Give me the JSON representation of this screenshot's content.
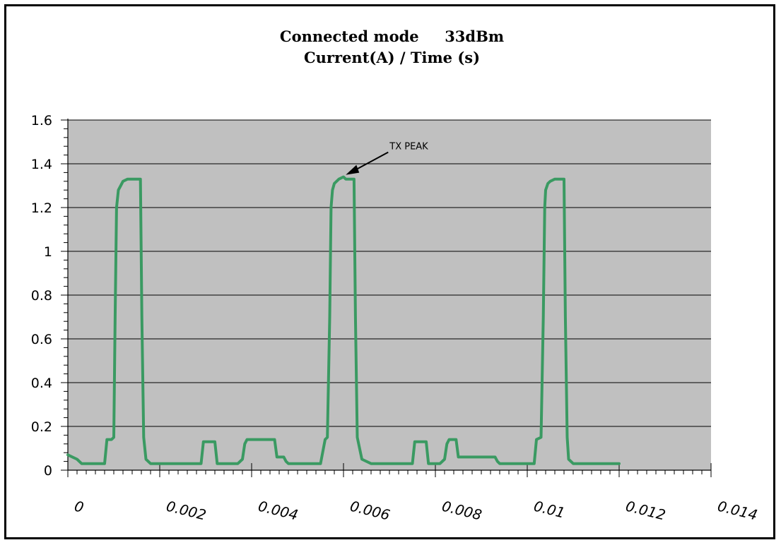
{
  "chart_data": {
    "type": "line",
    "title": "Connected mode     33dBm",
    "subtitle": "Current(A) / Time (s)",
    "xlabel": "",
    "ylabel": "",
    "xlim": [
      0,
      0.014
    ],
    "ylim": [
      0,
      1.6
    ],
    "x_ticks": [
      0,
      0.002,
      0.004,
      0.006,
      0.008,
      0.01,
      0.012,
      0.014
    ],
    "x_tick_labels": [
      "0",
      "0.002",
      "0.004",
      "0.006",
      "0.008",
      "0.01",
      "0.012",
      "0.014"
    ],
    "y_ticks": [
      0,
      0.2,
      0.4,
      0.6,
      0.8,
      1,
      1.2,
      1.4,
      1.6
    ],
    "y_tick_labels": [
      "0",
      "0.2",
      "0.4",
      "0.6",
      "0.8",
      "1",
      "1.2",
      "1.4",
      "1.6"
    ],
    "grid": "horizontal",
    "plot_background": "#c0c0c0",
    "series": [
      {
        "color": "#3a9a62",
        "x": [
          0,
          0.0001,
          0.0002,
          0.0003,
          0.00055,
          0.0008,
          0.00085,
          0.00095,
          0.001,
          0.00103,
          0.00106,
          0.0011,
          0.00115,
          0.0012,
          0.0013,
          0.00145,
          0.00158,
          0.00161,
          0.00165,
          0.0017,
          0.0018,
          0.002,
          0.0029,
          0.00295,
          0.003,
          0.0032,
          0.00325,
          0.0033,
          0.0037,
          0.0038,
          0.00385,
          0.0039,
          0.0045,
          0.00455,
          0.0046,
          0.0047,
          0.00475,
          0.0048,
          0.0049,
          0.0055,
          0.0056,
          0.00565,
          0.0057,
          0.00573,
          0.00576,
          0.0058,
          0.0059,
          0.006,
          0.00605,
          0.0061,
          0.00623,
          0.00626,
          0.0063,
          0.0064,
          0.0066,
          0.0075,
          0.00755,
          0.0076,
          0.0078,
          0.00785,
          0.0079,
          0.0081,
          0.0082,
          0.00825,
          0.0083,
          0.0084,
          0.00845,
          0.0085,
          0.0093,
          0.00935,
          0.0094,
          0.0096,
          0.0097,
          0.01015,
          0.0102,
          0.0103,
          0.01035,
          0.01038,
          0.0104,
          0.01045,
          0.0105,
          0.0106,
          0.0108,
          0.01083,
          0.01087,
          0.0109,
          0.011,
          0.0112,
          0.012
        ],
        "y": [
          0.07,
          0.06,
          0.05,
          0.03,
          0.03,
          0.03,
          0.14,
          0.14,
          0.15,
          0.7,
          1.2,
          1.28,
          1.3,
          1.32,
          1.33,
          1.33,
          1.33,
          0.7,
          0.15,
          0.05,
          0.03,
          0.03,
          0.03,
          0.13,
          0.13,
          0.13,
          0.03,
          0.03,
          0.03,
          0.05,
          0.12,
          0.14,
          0.14,
          0.06,
          0.06,
          0.06,
          0.04,
          0.03,
          0.03,
          0.03,
          0.14,
          0.15,
          0.7,
          1.2,
          1.28,
          1.31,
          1.33,
          1.34,
          1.33,
          1.33,
          1.33,
          0.7,
          0.15,
          0.05,
          0.03,
          0.03,
          0.13,
          0.13,
          0.13,
          0.03,
          0.03,
          0.03,
          0.05,
          0.12,
          0.14,
          0.14,
          0.14,
          0.06,
          0.06,
          0.04,
          0.03,
          0.03,
          0.03,
          0.03,
          0.14,
          0.15,
          0.7,
          1.2,
          1.28,
          1.31,
          1.32,
          1.33,
          1.33,
          0.7,
          0.15,
          0.05,
          0.03,
          0.03,
          0.03
        ]
      }
    ],
    "annotations": [
      {
        "text": "TX PEAK",
        "x": 0.00605,
        "y": 1.34
      }
    ]
  }
}
